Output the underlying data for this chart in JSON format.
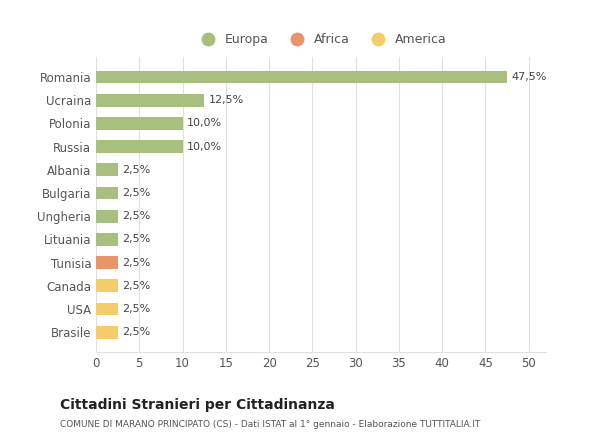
{
  "categories": [
    "Brasile",
    "USA",
    "Canada",
    "Tunisia",
    "Lituania",
    "Ungheria",
    "Bulgaria",
    "Albania",
    "Russia",
    "Polonia",
    "Ucraina",
    "Romania"
  ],
  "values": [
    2.5,
    2.5,
    2.5,
    2.5,
    2.5,
    2.5,
    2.5,
    2.5,
    10.0,
    10.0,
    12.5,
    47.5
  ],
  "colors": [
    "#f5cc6a",
    "#f5cc6a",
    "#f5cc6a",
    "#e8956a",
    "#a8bf80",
    "#a8bf80",
    "#a8bf80",
    "#a8bf80",
    "#a8bf80",
    "#a8bf80",
    "#a8bf80",
    "#a8bf80"
  ],
  "bar_labels": [
    "2,5%",
    "2,5%",
    "2,5%",
    "2,5%",
    "2,5%",
    "2,5%",
    "2,5%",
    "2,5%",
    "10,0%",
    "10,0%",
    "12,5%",
    "47,5%"
  ],
  "xlim": [
    0,
    52
  ],
  "xticks": [
    0,
    5,
    10,
    15,
    20,
    25,
    30,
    35,
    40,
    45,
    50
  ],
  "legend": [
    {
      "label": "Europa",
      "color": "#a8bf80"
    },
    {
      "label": "Africa",
      "color": "#e8956a"
    },
    {
      "label": "America",
      "color": "#f5cc6a"
    }
  ],
  "title": "Cittadini Stranieri per Cittadinanza",
  "subtitle": "COMUNE DI MARANO PRINCIPATO (CS) - Dati ISTAT al 1° gennaio - Elaborazione TUTTITALIA.IT",
  "background_color": "#ffffff",
  "grid_color": "#e0e0e0"
}
